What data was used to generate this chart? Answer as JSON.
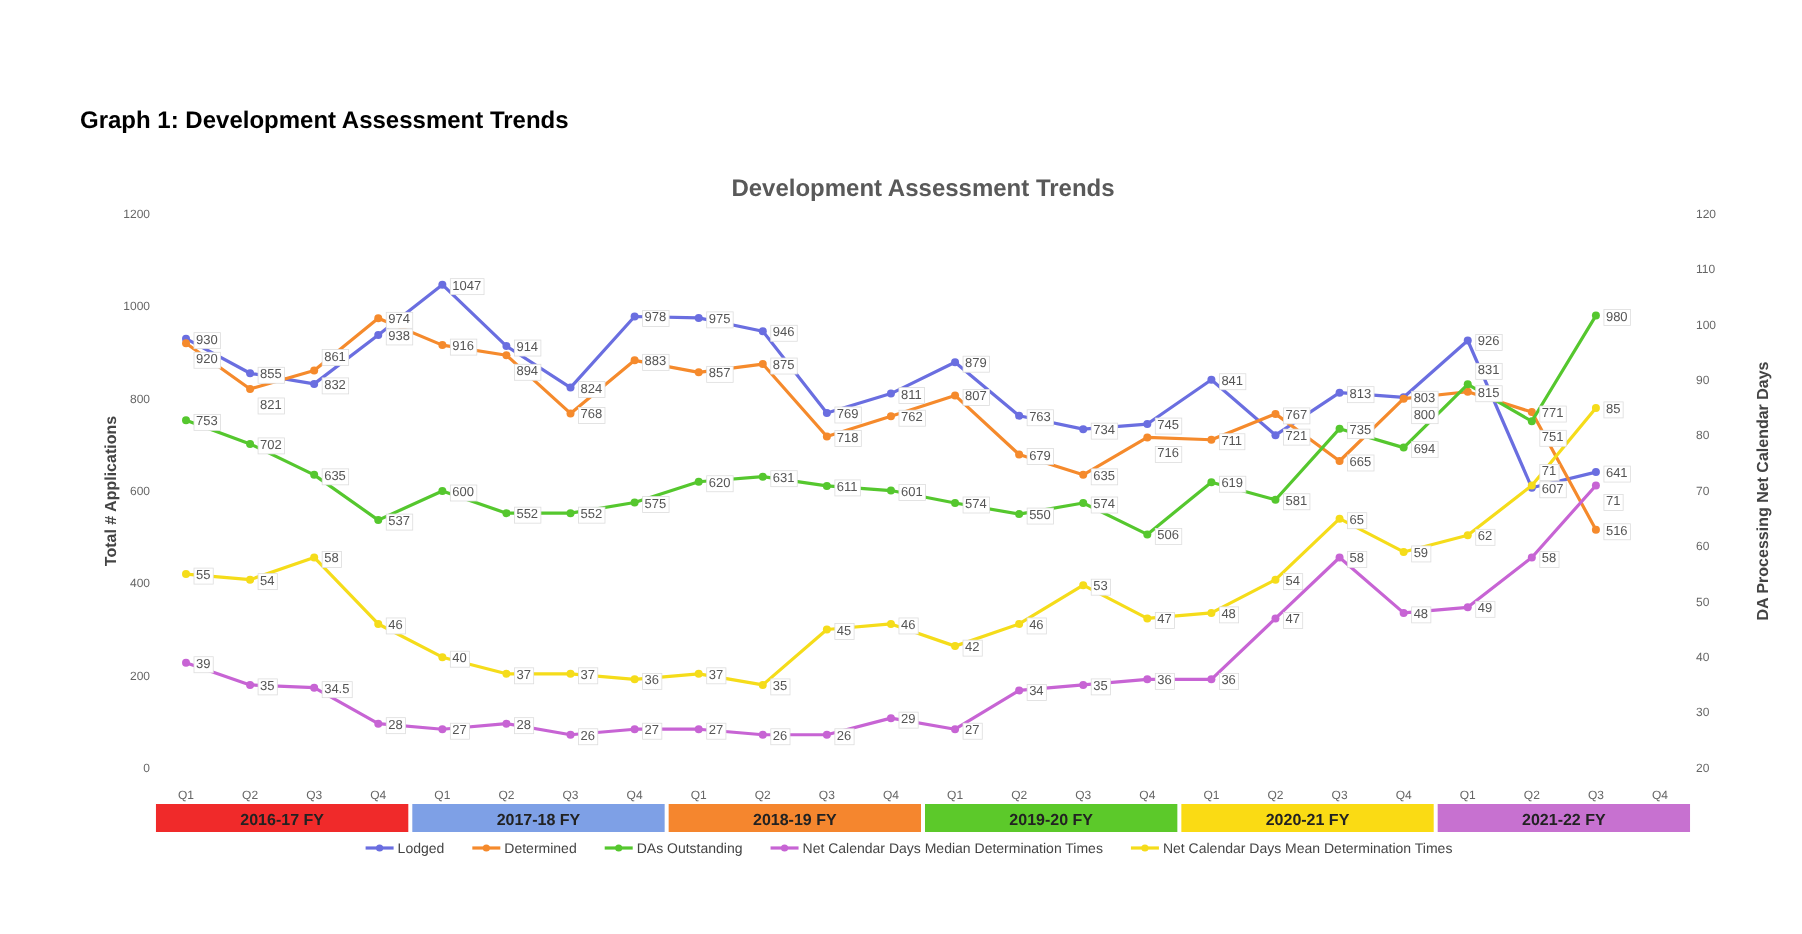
{
  "chart_data": {
    "type": "line",
    "subtitle": "Graph 1: Development Assessment Trends",
    "title": "Development Assessment Trends",
    "ylabel": "Total # Applications",
    "y2label": "DA Processing Net Calendar Days",
    "categories": [
      "Q1",
      "Q2",
      "Q3",
      "Q4",
      "Q1",
      "Q2",
      "Q3",
      "Q4",
      "Q1",
      "Q2",
      "Q3",
      "Q4",
      "Q1",
      "Q2",
      "Q3",
      "Q4",
      "Q1",
      "Q2",
      "Q3",
      "Q4",
      "Q1",
      "Q2",
      "Q3",
      "Q4"
    ],
    "annotations": [
      "2016-17 FY",
      "2017-18 FY",
      "2018-19 FY",
      "2019-20 FY",
      "2020-21 FY",
      "2021-22 FY"
    ],
    "ylim": [
      0,
      1200
    ],
    "yticks": [
      0,
      200,
      400,
      600,
      800,
      1000,
      1200
    ],
    "y2lim": [
      20,
      120
    ],
    "y2ticks": [
      20,
      30,
      40,
      50,
      60,
      70,
      80,
      90,
      100,
      110,
      120
    ],
    "legend": "bottom",
    "marker": "circle",
    "data_labels": true,
    "series": [
      {
        "name": "Lodged",
        "color": "#6a6ee0",
        "values": [
          930,
          855,
          832,
          938,
          1047,
          914,
          824,
          978,
          975,
          946,
          769,
          811,
          879,
          763,
          734,
          745,
          841,
          721,
          813,
          803,
          926,
          607,
          641,
          null
        ]
      },
      {
        "name": "Determined",
        "color": "#f58a2c",
        "values": [
          920,
          821,
          861,
          974,
          916,
          894,
          768,
          883,
          857,
          875,
          718,
          762,
          807,
          679,
          635,
          716,
          711,
          767,
          665,
          800,
          815,
          771,
          516,
          null
        ]
      },
      {
        "name": "DAs Outstanding",
        "color": "#55c72e",
        "values": [
          753,
          702,
          635,
          537,
          600,
          552,
          552,
          575,
          620,
          631,
          611,
          601,
          574,
          550,
          574,
          506,
          619,
          581,
          735,
          694,
          831,
          751,
          980,
          null
        ]
      },
      {
        "name": "Net Calendar Days Median Determination Times",
        "color": "#c764d4",
        "axis": "y2",
        "values": [
          39,
          35,
          34.5,
          28,
          27,
          28,
          26,
          27,
          27,
          26,
          26,
          29,
          27,
          34,
          35,
          36,
          36,
          47,
          58,
          48,
          49,
          58,
          71,
          null
        ]
      },
      {
        "name": "Net Calendar Days Mean Determination Times",
        "color": "#f5dc1a",
        "axis": "y2",
        "values": [
          55,
          54,
          58,
          46,
          40,
          37,
          37,
          36,
          37,
          35,
          45,
          46,
          42,
          46,
          53,
          47,
          48,
          54,
          65,
          59,
          62,
          71,
          85,
          null
        ]
      }
    ]
  }
}
